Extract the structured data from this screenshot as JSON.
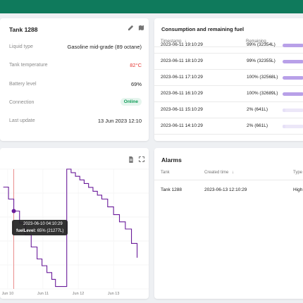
{
  "tank": {
    "title": "Tank 1288",
    "rows": [
      {
        "label": "Liquid type",
        "value": "Gasoline mid-grade (89 octane)",
        "color": "#212121"
      },
      {
        "label": "Tank temperature",
        "value": "82°C",
        "color": "#e53935"
      },
      {
        "label": "Battery level",
        "value": "69%",
        "color": "#212121"
      },
      {
        "label": "Connection",
        "value": "Online",
        "color": "#0f9d58"
      },
      {
        "label": "Last update",
        "value": "13 Jun 2023 12:10",
        "color": "#212121"
      }
    ]
  },
  "consumption": {
    "title": "Consumption and remaining fuel",
    "columns": {
      "timestamp": "Timestamp",
      "remaining": "Remaining"
    },
    "rows": [
      {
        "timestamp": "2023-06-11 19:10:29",
        "remaining": "99% (32354L)",
        "percent": 99
      },
      {
        "timestamp": "2023-06-11 18:10:29",
        "remaining": "99% (32355L)",
        "percent": 99
      },
      {
        "timestamp": "2023-06-11 17:10:29",
        "remaining": "100% (32568L)",
        "percent": 100
      },
      {
        "timestamp": "2023-06-11 16:10:29",
        "remaining": "100% (32689L)",
        "percent": 100
      },
      {
        "timestamp": "2023-06-11 15:10:29",
        "remaining": "2% (641L)",
        "percent": 2
      },
      {
        "timestamp": "2023-06-11 14:10:29",
        "remaining": "2% (661L)",
        "percent": 2
      }
    ]
  },
  "alarms": {
    "title": "Alarms",
    "columns": {
      "tank": "Tank",
      "created": "Created time",
      "type": "Type"
    },
    "rows": [
      {
        "tank": "Tank 1288",
        "created": "2023-06-13 12:10:29",
        "type": "High"
      }
    ]
  },
  "chart_data": {
    "type": "line",
    "title": "",
    "xlabel": "",
    "ylabel": "",
    "x_ticks": [
      "Jun 10",
      "Jun 11",
      "Jun 12",
      "Jun 13"
    ],
    "ylim": [
      0,
      100
    ],
    "grid": true,
    "series": [
      {
        "name": "fuelLevel",
        "color": "#6a1b9a",
        "points": [
          {
            "x": "2023-06-09 21:00",
            "y": 85
          },
          {
            "x": "2023-06-10 04:10",
            "y": 65
          },
          {
            "x": "2023-06-10 12:00",
            "y": 45
          },
          {
            "x": "2023-06-10 20:00",
            "y": 25
          },
          {
            "x": "2023-06-11 06:00",
            "y": 8
          },
          {
            "x": "2023-06-11 08:30",
            "y": 2
          },
          {
            "x": "2023-06-11 16:10",
            "y": 100
          },
          {
            "x": "2023-06-12 04:00",
            "y": 88
          },
          {
            "x": "2023-06-12 16:00",
            "y": 75
          },
          {
            "x": "2023-06-13 00:00",
            "y": 62
          },
          {
            "x": "2023-06-13 08:00",
            "y": 50
          },
          {
            "x": "2023-06-13 12:10",
            "y": 38
          },
          {
            "x": "2023-06-13 16:00",
            "y": 26
          }
        ]
      }
    ],
    "tooltip": {
      "time": "2023-06-10 04:10:29",
      "label": "fuelLevel:",
      "value": "65% (21277L)"
    }
  }
}
